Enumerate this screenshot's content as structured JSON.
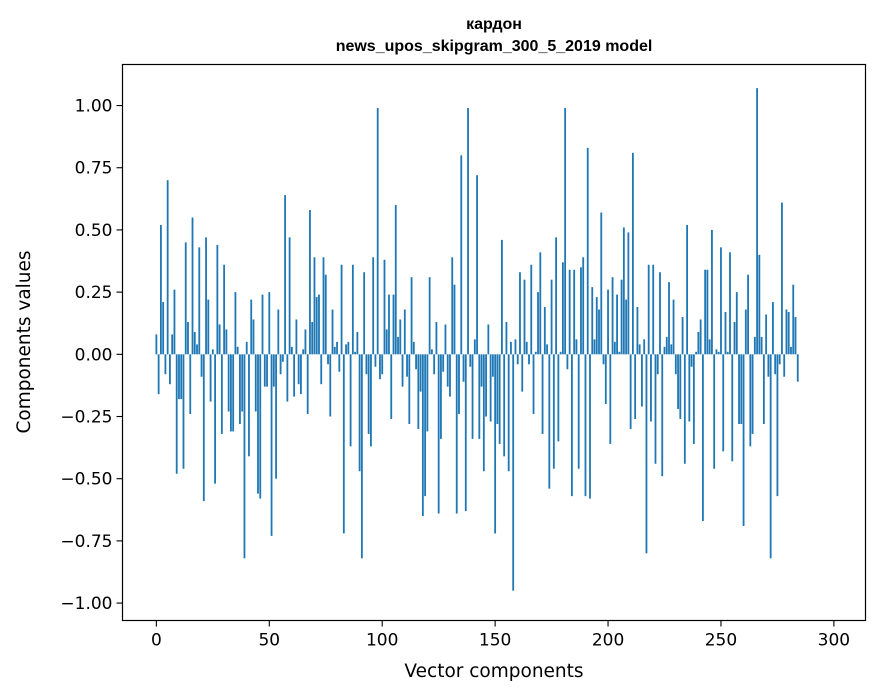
{
  "chart_data": {
    "type": "bar",
    "title": "кардон",
    "subtitle": "news_upos_skipgram_300_5_2019 model",
    "xlabel": "Vector components",
    "ylabel": "Components values",
    "xlim": [
      -15,
      314
    ],
    "ylim": [
      -1.07,
      1.165
    ],
    "xticks": [
      0,
      50,
      100,
      150,
      200,
      250,
      300
    ],
    "yticks": [
      -1.0,
      -0.75,
      -0.5,
      -0.25,
      0.0,
      0.25,
      0.5,
      0.75,
      1.0
    ],
    "ytick_labels": [
      "−1.00",
      "−0.75",
      "−0.50",
      "−0.25",
      "0.00",
      "0.25",
      "0.50",
      "0.75",
      "1.00"
    ],
    "grid": false,
    "bar_color": "#1f77b4",
    "x_start": 0,
    "values": [
      0.08,
      -0.16,
      0.52,
      0.21,
      -0.08,
      0.7,
      -0.12,
      0.08,
      0.26,
      -0.48,
      -0.18,
      -0.18,
      -0.46,
      0.45,
      0.13,
      -0.24,
      0.55,
      0.09,
      0.04,
      0.43,
      -0.09,
      -0.59,
      0.47,
      0.22,
      -0.19,
      0.02,
      -0.52,
      0.44,
      0.12,
      -0.32,
      0.36,
      0.1,
      -0.23,
      -0.31,
      -0.31,
      0.25,
      0.03,
      -0.28,
      -0.23,
      -0.82,
      0.05,
      -0.41,
      0.22,
      0.14,
      -0.23,
      -0.56,
      -0.58,
      0.24,
      -0.13,
      -0.13,
      0.25,
      -0.73,
      -0.13,
      -0.5,
      0.18,
      -0.08,
      -0.03,
      0.64,
      -0.19,
      0.47,
      0.03,
      -0.17,
      0.14,
      -0.12,
      -0.16,
      0.02,
      0.1,
      -0.24,
      0.58,
      0.13,
      0.39,
      0.23,
      0.24,
      -0.12,
      0.39,
      0.32,
      -0.04,
      -0.25,
      0.18,
      0.03,
      0.05,
      -0.07,
      0.36,
      -0.72,
      0.04,
      0.05,
      -0.37,
      0.36,
      0.01,
      0.09,
      -0.47,
      -0.82,
      0.33,
      -0.08,
      -0.32,
      -0.37,
      0.39,
      -0.05,
      0.99,
      -0.1,
      -0.08,
      0.38,
      0.1,
      0.24,
      -0.26,
      0.24,
      0.6,
      0.07,
      0.14,
      -0.13,
      0.18,
      -0.09,
      -0.28,
      0.31,
      0.05,
      -0.06,
      -0.3,
      -0.15,
      -0.65,
      -0.57,
      -0.31,
      0.31,
      0.02,
      -0.08,
      0.13,
      -0.64,
      -0.34,
      -0.07,
      0.12,
      -0.13,
      -0.17,
      0.39,
      0.28,
      -0.64,
      -0.24,
      0.8,
      -0.11,
      -0.63,
      0.99,
      -0.05,
      -0.34,
      0.06,
      0.72,
      -0.34,
      -0.13,
      -0.47,
      -0.25,
      0.12,
      -0.27,
      -0.09,
      -0.72,
      -0.28,
      -0.36,
      0.46,
      -0.41,
      0.13,
      -0.47,
      0.05,
      -0.95,
      0.06,
      -0.04,
      0.33,
      -0.15,
      0.3,
      0.05,
      -0.04,
      0.36,
      -0.24,
      0.01,
      0.25,
      0.41,
      -0.32,
      0.19,
      0.04,
      -0.54,
      0.3,
      -0.46,
      0.47,
      -0.35,
      0.01,
      0.37,
      0.99,
      -0.06,
      0.34,
      -0.57,
      0.34,
      0.06,
      -0.46,
      0.35,
      0.39,
      -0.57,
      0.83,
      -0.58,
      0.27,
      0.06,
      0.23,
      0.18,
      0.57,
      -0.04,
      -0.2,
      0.26,
      -0.36,
      0.31,
      0.05,
      0.24,
      0.01,
      0.3,
      0.51,
      0.22,
      0.49,
      -0.3,
      0.81,
      -0.26,
      0.19,
      0.04,
      -0.21,
      0.06,
      -0.8,
      0.36,
      -0.27,
      0.36,
      -0.44,
      -0.08,
      0.33,
      -0.49,
      0.03,
      0.07,
      0.29,
      0.04,
      0.22,
      -0.08,
      -0.22,
      -0.26,
      0.15,
      -0.44,
      0.52,
      -0.27,
      -0.05,
      -0.36,
      0.01,
      0.09,
      0.14,
      -0.67,
      0.34,
      0.34,
      0.06,
      0.5,
      -0.46,
      0.02,
      0.01,
      0.43,
      -0.39,
      0.17,
      0.01,
      0.41,
      -0.43,
      0.13,
      0.25,
      -0.28,
      -0.28,
      -0.69,
      0.18,
      0.32,
      -0.37,
      -0.32,
      0.07,
      1.07,
      0.4,
      0.07,
      -0.28,
      0.16,
      -0.09,
      -0.82,
      0.21,
      -0.08,
      -0.57,
      -0.04,
      0.61,
      -0.09,
      0.18,
      0.17,
      0.03,
      0.28,
      0.15,
      -0.11
    ]
  }
}
